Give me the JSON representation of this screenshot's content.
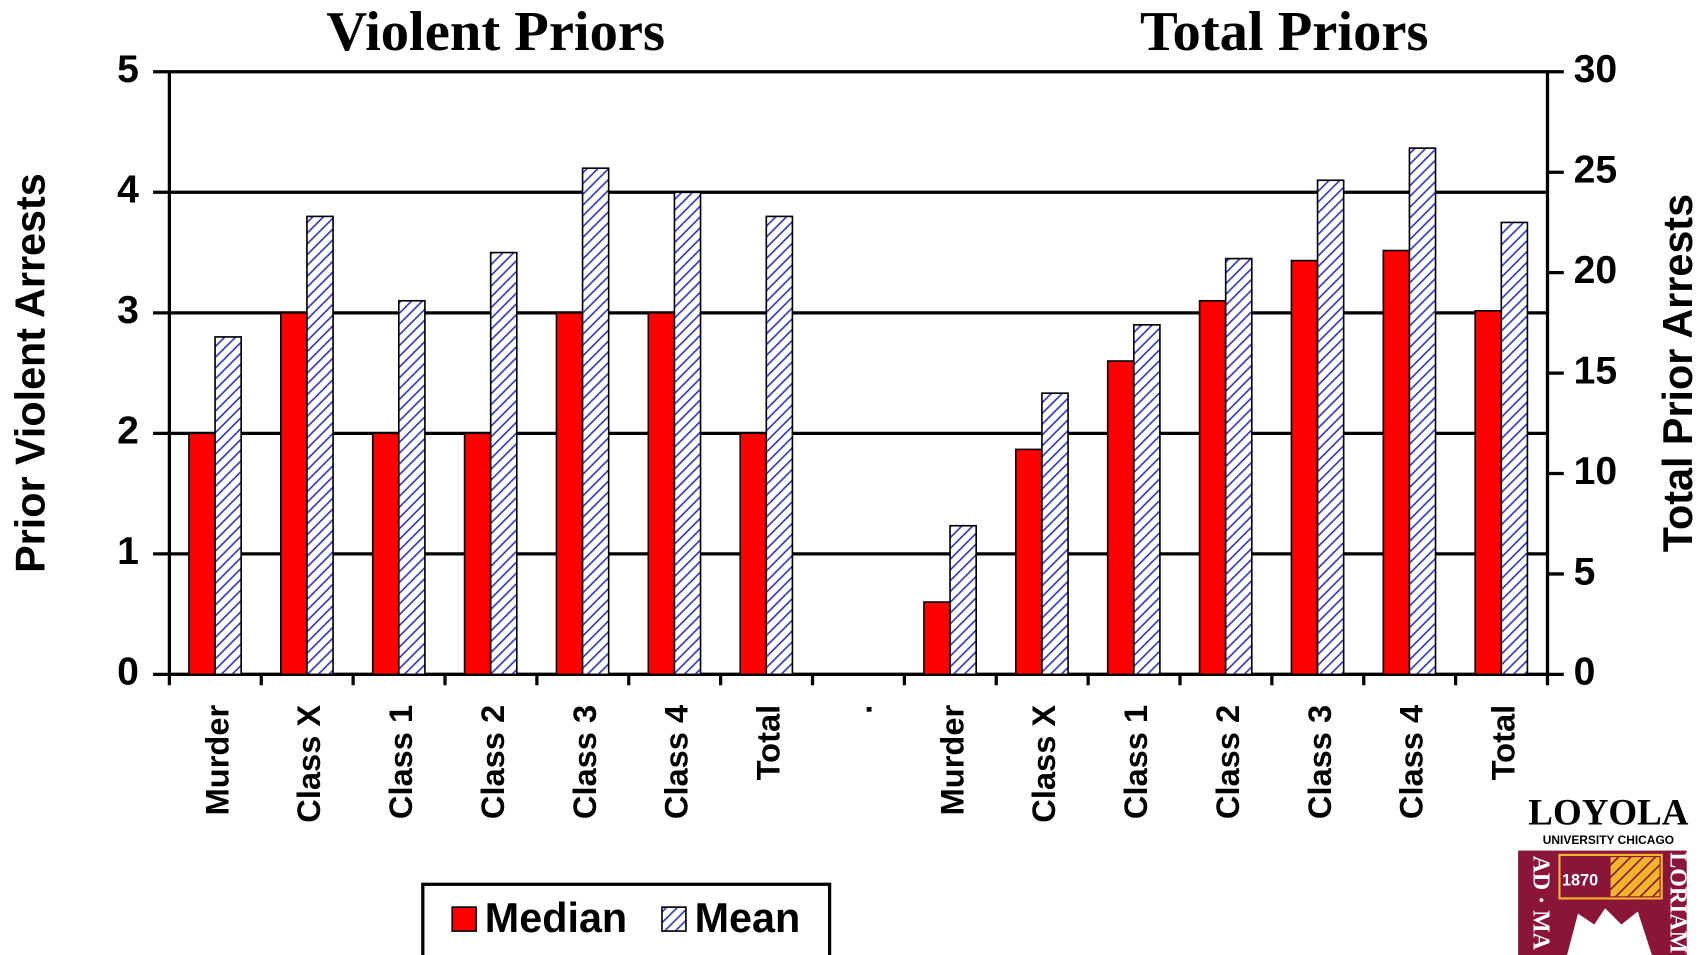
{
  "chart_data": {
    "type": "bar",
    "titles": [
      "Violent Priors",
      "Total Priors"
    ],
    "ylabel": "Prior Violent Arrests",
    "y2label": "Total Prior Arrests",
    "categories": [
      "Murder",
      "Class X",
      "Class 1",
      "Class 2",
      "Class 3",
      "Class 4",
      "Total",
      ".",
      "Murder",
      "Class X",
      "Class 1",
      "Class 2",
      "Class 3",
      "Class 4",
      "Total"
    ],
    "series": [
      {
        "name": "Median",
        "color": "#ff0000",
        "values": [
          2,
          3,
          2,
          2,
          3,
          3,
          2,
          null,
          null,
          null,
          null,
          null,
          null,
          null,
          null
        ]
      },
      {
        "name": "Mean",
        "color": "#3333cc",
        "pattern": "hatch",
        "values": [
          2.8,
          3.8,
          3.1,
          3.5,
          4.2,
          4.0,
          3.8,
          null,
          null,
          null,
          null,
          null,
          null,
          null,
          null
        ]
      },
      {
        "name": "Median",
        "color": "#ff0000",
        "axis": "y2",
        "values": [
          null,
          null,
          null,
          null,
          null,
          null,
          null,
          null,
          3.6,
          11.2,
          15.6,
          18.6,
          20.6,
          21.1,
          18.1
        ]
      },
      {
        "name": "Mean",
        "color": "#3333cc",
        "pattern": "hatch",
        "axis": "y2",
        "values": [
          null,
          null,
          null,
          null,
          null,
          null,
          null,
          null,
          7.4,
          14.0,
          17.4,
          20.7,
          24.6,
          26.2,
          22.5
        ]
      }
    ],
    "ylim": [
      0,
      5
    ],
    "yticks": [
      0,
      1,
      2,
      3,
      4,
      5
    ],
    "y2lim": [
      0,
      30
    ],
    "y2ticks": [
      0,
      5,
      10,
      15,
      20,
      25,
      30
    ],
    "grid": true,
    "legend": "bottom",
    "logo": {
      "name": "LOYOLA",
      "subtitle": "UNIVERSITY CHICAGO",
      "year": "1870",
      "motto_left": "AD · MA",
      "motto_right": "LORIAM"
    }
  }
}
